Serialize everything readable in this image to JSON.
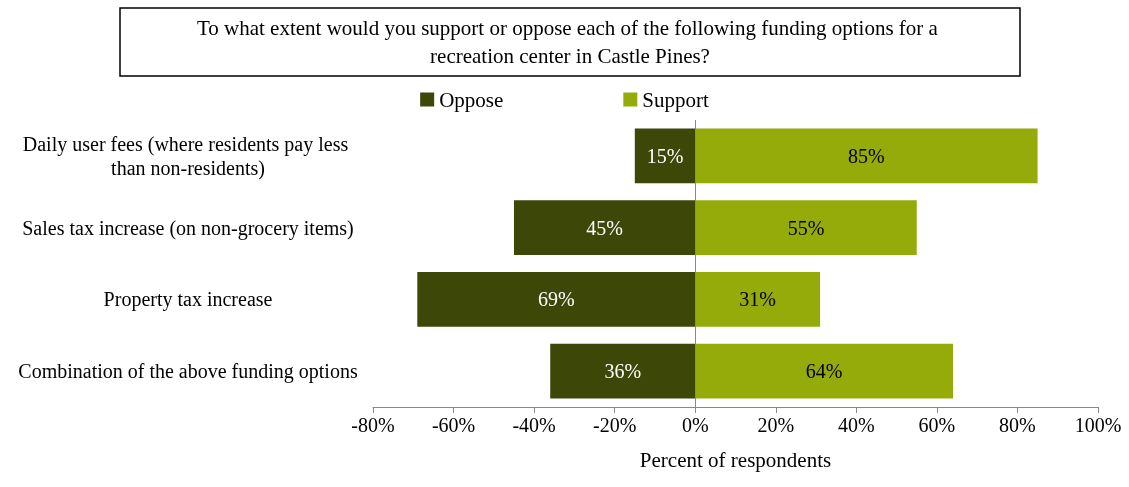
{
  "chart_data": {
    "type": "bar",
    "orientation": "horizontal",
    "title": "To what extent would you support or oppose each of the following funding options for a recreation center in Castle Pines?",
    "xlabel": "Percent of respondents",
    "categories": [
      "Daily user fees (where residents pay less than non-residents)",
      "Sales tax increase (on non-grocery items)",
      "Property tax increase",
      "Combination of the above funding options"
    ],
    "series": [
      {
        "name": "Oppose",
        "color": "#3d4707",
        "base": [
          -15,
          -45,
          -69,
          -36
        ],
        "values": [
          15,
          45,
          69,
          36
        ],
        "value_labels": [
          "15%",
          "45%",
          "69%",
          "36%"
        ]
      },
      {
        "name": "Support",
        "color": "#94ab0a",
        "base": [
          0,
          0,
          0,
          0
        ],
        "values": [
          85,
          55,
          31,
          64
        ],
        "value_labels": [
          "85%",
          "55%",
          "31%",
          "64%"
        ]
      }
    ],
    "xlim": [
      -80,
      100
    ],
    "xticks": [
      {
        "value": -80,
        "label": "-80%"
      },
      {
        "value": -60,
        "label": "-60%"
      },
      {
        "value": -40,
        "label": "-40%"
      },
      {
        "value": -20,
        "label": "-20%"
      },
      {
        "value": 0,
        "label": "0%"
      },
      {
        "value": 20,
        "label": "20%"
      },
      {
        "value": 40,
        "label": "40%"
      },
      {
        "value": 60,
        "label": "60%"
      },
      {
        "value": 80,
        "label": "80%"
      },
      {
        "value": 100,
        "label": "100%"
      }
    ],
    "ref_lines": [
      {
        "axis": "x",
        "value": 0,
        "color": "#888888"
      }
    ],
    "grid": false,
    "legend": "top"
  }
}
